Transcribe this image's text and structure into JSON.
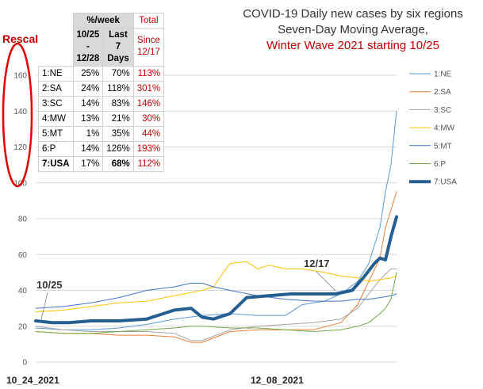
{
  "title_lines": [
    "COVID-19 Daily new cases by six regions",
    "Seven-Day Moving Average,",
    "Winter Wave 2021 starting 10/25"
  ],
  "rescaled_label": "Rescaled",
  "table": {
    "header_week": "%/week",
    "header_total": "Total",
    "sub_range": [
      "10/25",
      "-",
      "12/28"
    ],
    "sub_last": [
      "Last",
      "7",
      "Days"
    ],
    "sub_since": [
      "Since",
      "12/17"
    ],
    "rows": [
      {
        "region": "1:NE",
        "week": "25%",
        "last7": "70%",
        "since": "113%"
      },
      {
        "region": "2:SA",
        "week": "24%",
        "last7": "118%",
        "since": "301%"
      },
      {
        "region": "3:SC",
        "week": "14%",
        "last7": "83%",
        "since": "146%"
      },
      {
        "region": "4:MW",
        "week": "13%",
        "last7": "21%",
        "since": "30%"
      },
      {
        "region": "5:MT",
        "week": "1%",
        "last7": "35%",
        "since": "44%"
      },
      {
        "region": "6:P",
        "week": "14%",
        "last7": "126%",
        "since": "193%"
      },
      {
        "region": "7:USA",
        "week": "17%",
        "last7": "68%",
        "since": "112%"
      }
    ]
  },
  "colors": {
    "NE": "#5b9bd5",
    "SA": "#ed7d31",
    "SC": "#a5a5a5",
    "MW": "#ffc000",
    "MT": "#4472c4",
    "P": "#70ad47",
    "USA": "#255e91",
    "accent": "#c00000"
  },
  "chart_data": {
    "type": "line",
    "title": "COVID-19 Daily new cases by six regions Seven-Day Moving Average, Winter Wave 2021 starting 10/25",
    "x_categories": [
      "10_24_2021",
      "12_08_2021"
    ],
    "yticks": [
      0,
      20,
      40,
      60,
      80,
      100,
      120,
      140,
      160
    ],
    "ylim": [
      0,
      160
    ],
    "grid": true,
    "legend_position": "right",
    "annotations": [
      {
        "text": "10/25",
        "x": 1,
        "y": 22
      },
      {
        "text": "12/17",
        "x": 54,
        "y": 38
      }
    ],
    "x_count": 66,
    "series": [
      {
        "name": "1:NE",
        "color": "#5b9bd5",
        "width": 1,
        "values": [
          [
            0,
            19
          ],
          [
            5,
            18
          ],
          [
            10,
            18
          ],
          [
            15,
            19
          ],
          [
            20,
            21
          ],
          [
            25,
            24
          ],
          [
            30,
            26
          ],
          [
            35,
            27
          ],
          [
            40,
            26
          ],
          [
            45,
            26
          ],
          [
            48,
            32
          ],
          [
            52,
            34
          ],
          [
            55,
            38
          ],
          [
            58,
            45
          ],
          [
            60,
            55
          ],
          [
            62,
            75
          ],
          [
            63,
            95
          ],
          [
            64,
            110
          ],
          [
            65,
            140
          ]
        ]
      },
      {
        "name": "2:SA",
        "color": "#ed7d31",
        "width": 1,
        "values": [
          [
            0,
            17
          ],
          [
            5,
            16
          ],
          [
            10,
            16
          ],
          [
            15,
            15
          ],
          [
            20,
            15
          ],
          [
            25,
            14
          ],
          [
            28,
            11
          ],
          [
            30,
            11
          ],
          [
            35,
            17
          ],
          [
            40,
            18
          ],
          [
            45,
            18
          ],
          [
            50,
            18
          ],
          [
            55,
            22
          ],
          [
            58,
            32
          ],
          [
            60,
            45
          ],
          [
            62,
            58
          ],
          [
            63,
            75
          ],
          [
            64,
            85
          ],
          [
            65,
            95
          ]
        ]
      },
      {
        "name": "3:SC",
        "color": "#a5a5a5",
        "width": 1,
        "values": [
          [
            0,
            20
          ],
          [
            5,
            18
          ],
          [
            10,
            17
          ],
          [
            15,
            17
          ],
          [
            20,
            17
          ],
          [
            25,
            16
          ],
          [
            28,
            12
          ],
          [
            30,
            12
          ],
          [
            35,
            18
          ],
          [
            40,
            20
          ],
          [
            45,
            21
          ],
          [
            50,
            22
          ],
          [
            55,
            24
          ],
          [
            58,
            30
          ],
          [
            60,
            38
          ],
          [
            62,
            46
          ],
          [
            64,
            52
          ],
          [
            65,
            52
          ]
        ]
      },
      {
        "name": "4:MW",
        "color": "#ffc000",
        "width": 1,
        "values": [
          [
            0,
            28
          ],
          [
            5,
            29
          ],
          [
            10,
            31
          ],
          [
            15,
            33
          ],
          [
            20,
            34
          ],
          [
            25,
            37
          ],
          [
            30,
            40
          ],
          [
            32,
            42
          ],
          [
            35,
            55
          ],
          [
            38,
            56
          ],
          [
            40,
            52
          ],
          [
            42,
            54
          ],
          [
            45,
            52
          ],
          [
            48,
            52
          ],
          [
            52,
            50
          ],
          [
            55,
            48
          ],
          [
            58,
            47
          ],
          [
            60,
            45
          ],
          [
            62,
            46
          ],
          [
            64,
            47
          ],
          [
            65,
            48
          ]
        ]
      },
      {
        "name": "5:MT",
        "color": "#4472c4",
        "width": 1,
        "values": [
          [
            0,
            30
          ],
          [
            5,
            31
          ],
          [
            10,
            33
          ],
          [
            15,
            36
          ],
          [
            20,
            40
          ],
          [
            25,
            42
          ],
          [
            28,
            44
          ],
          [
            30,
            44
          ],
          [
            32,
            42
          ],
          [
            35,
            40
          ],
          [
            40,
            37
          ],
          [
            45,
            35
          ],
          [
            50,
            34
          ],
          [
            55,
            34
          ],
          [
            58,
            35
          ],
          [
            60,
            35
          ],
          [
            62,
            36
          ],
          [
            64,
            37
          ],
          [
            65,
            38
          ]
        ]
      },
      {
        "name": "6:P",
        "color": "#70ad47",
        "width": 1,
        "values": [
          [
            0,
            17
          ],
          [
            5,
            16
          ],
          [
            10,
            16
          ],
          [
            15,
            17
          ],
          [
            20,
            18
          ],
          [
            25,
            19
          ],
          [
            28,
            20
          ],
          [
            30,
            20
          ],
          [
            35,
            19
          ],
          [
            40,
            19
          ],
          [
            45,
            18
          ],
          [
            50,
            17
          ],
          [
            55,
            18
          ],
          [
            58,
            20
          ],
          [
            60,
            22
          ],
          [
            62,
            27
          ],
          [
            63,
            30
          ],
          [
            64,
            35
          ],
          [
            65,
            50
          ]
        ]
      },
      {
        "name": "7:USA",
        "color": "#255e91",
        "width": 4,
        "values": [
          [
            0,
            23
          ],
          [
            3,
            22
          ],
          [
            6,
            22
          ],
          [
            10,
            23
          ],
          [
            15,
            23
          ],
          [
            20,
            24
          ],
          [
            25,
            29
          ],
          [
            28,
            30
          ],
          [
            30,
            25
          ],
          [
            32,
            24
          ],
          [
            35,
            27
          ],
          [
            38,
            36
          ],
          [
            42,
            37
          ],
          [
            46,
            38
          ],
          [
            50,
            38
          ],
          [
            54,
            38
          ],
          [
            57,
            40
          ],
          [
            59,
            47
          ],
          [
            61,
            55
          ],
          [
            62,
            58
          ],
          [
            63,
            57
          ],
          [
            64,
            70
          ],
          [
            65,
            81
          ]
        ]
      }
    ]
  }
}
